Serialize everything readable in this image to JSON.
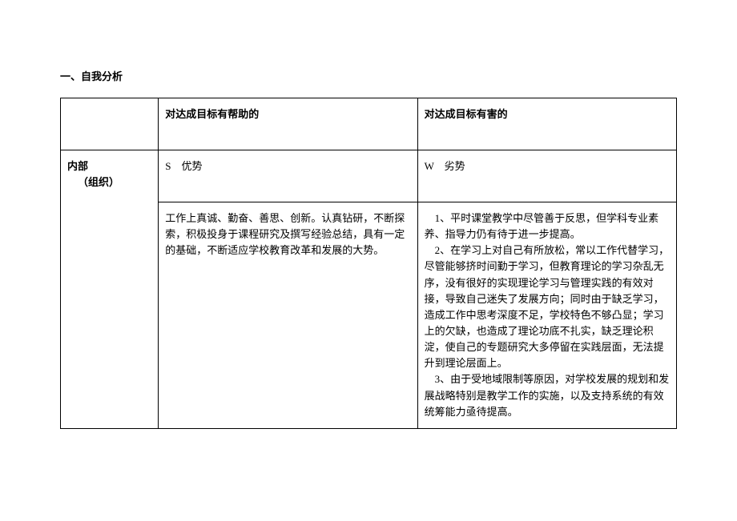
{
  "heading": "一、自我分析",
  "table": {
    "header": {
      "blank": "",
      "helpful": "对达成目标有帮助的",
      "harmful": "对达成目标有害的"
    },
    "row_label_line1": "内部",
    "row_label_line2": "（组织）",
    "s_label": "S　优势",
    "w_label": "W　劣势",
    "strengths_text": "工作上真诚、勤奋、善思、创新。认真钻研，不断探索，积极投身于课程研究及撰写经验总结，具有一定的基础，不断适应学校教育改革和发展的大势。",
    "weaknesses_p1": "　1、平时课堂教学中尽管善于反思，但学科专业素养、指导力仍有待于进一步提高。",
    "weaknesses_p2": "　2、在学习上对自己有所放松，常以工作代替学习，尽管能够挤时间勤于学习，但教育理论的学习杂乱无序，没有很好的实现理论学习与管理实践的有效对接，导致自己迷失了发展方向；同时由于缺乏学习，造成工作中思考深度不足，学校特色不够凸显；学习上的欠缺，也造成了理论功底不扎实，缺乏理论积淀，使自己的专题研究大多停留在实践层面，无法提升到理论层面上。",
    "weaknesses_p3": "　3、由于受地域限制等原因，对学校发展的规划和发展战略特别是教学工作的实施，以及支持系统的有效统筹能力亟待提高。"
  },
  "colors": {
    "text": "#000000",
    "border": "#000000",
    "background": "#ffffff"
  },
  "fonts": {
    "body_family": "SimSun",
    "body_size_pt": 10,
    "heading_weight": "bold"
  }
}
